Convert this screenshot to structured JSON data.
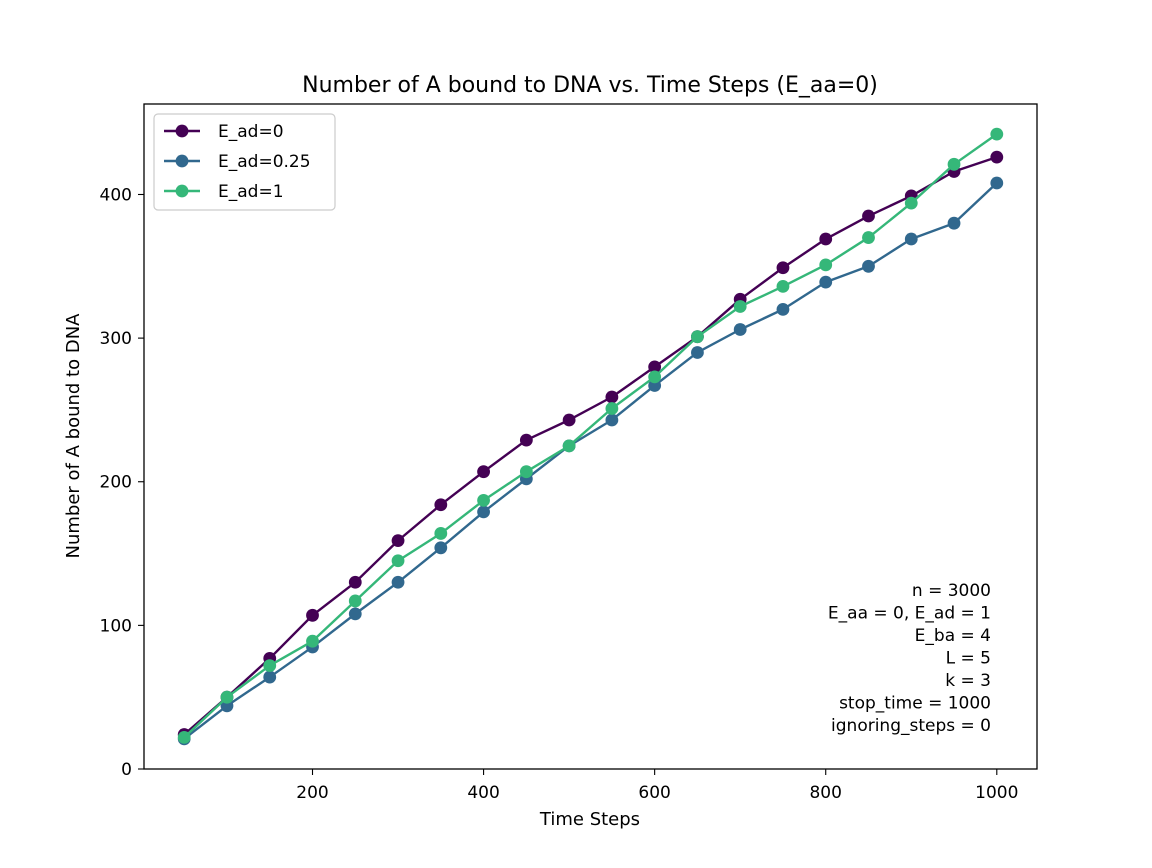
{
  "chart_data": {
    "type": "line",
    "title": "Number of A bound to DNA vs. Time Steps (E_aa=0)",
    "xlabel": "Time Steps",
    "ylabel": "Number of A bound to DNA",
    "xlim": [
      3,
      1047
    ],
    "ylim": [
      0,
      463
    ],
    "xticks": [
      200,
      400,
      600,
      800,
      1000
    ],
    "yticks": [
      0,
      100,
      200,
      300,
      400
    ],
    "grid": false,
    "legend_position": "upper-left",
    "x": [
      50,
      100,
      150,
      200,
      250,
      300,
      350,
      400,
      450,
      500,
      550,
      600,
      650,
      700,
      750,
      800,
      850,
      900,
      950,
      1000
    ],
    "series": [
      {
        "name": "E_ad=0",
        "color": "#440154",
        "marker": "circle",
        "values": [
          24,
          50,
          77,
          107,
          130,
          159,
          184,
          207,
          229,
          243,
          259,
          280,
          301,
          327,
          349,
          369,
          385,
          399,
          416,
          426
        ]
      },
      {
        "name": "E_ad=0.25",
        "color": "#31688e",
        "marker": "circle",
        "values": [
          21,
          44,
          64,
          85,
          108,
          130,
          154,
          179,
          202,
          225,
          243,
          267,
          290,
          306,
          320,
          339,
          350,
          369,
          380,
          408
        ]
      },
      {
        "name": "E_ad=1",
        "color": "#35b779",
        "marker": "circle",
        "values": [
          22,
          50,
          72,
          89,
          117,
          145,
          164,
          187,
          207,
          225,
          251,
          273,
          301,
          322,
          336,
          351,
          370,
          394,
          421,
          442
        ]
      }
    ],
    "annotation_lines": [
      "n = 3000",
      "E_aa = 0, E_ad = 1",
      "E_ba = 4",
      "L = 5",
      "k = 3",
      "stop_time = 1000",
      "ignoring_steps = 0"
    ]
  }
}
